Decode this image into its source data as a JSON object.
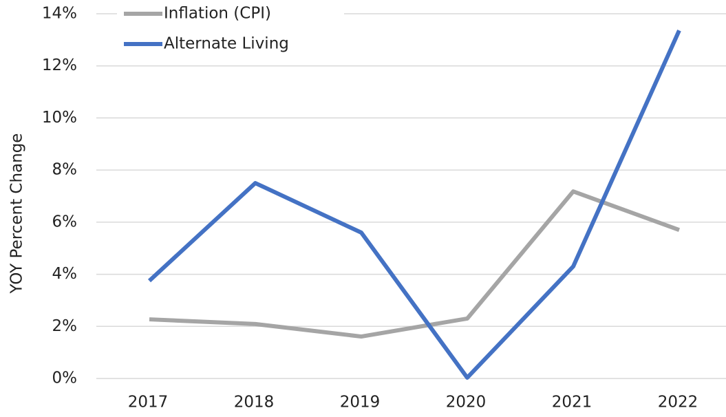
{
  "chart_data": {
    "type": "line",
    "y_label": "YOY Percent Change",
    "categories": [
      "2017",
      "2018",
      "2019",
      "2020",
      "2021",
      "2022"
    ],
    "series": [
      {
        "name": "Inflation (CPI)",
        "color": "#a5a5a5",
        "values": [
          2.27,
          2.09,
          1.61,
          2.3,
          7.18,
          5.7
        ]
      },
      {
        "name": "Alternate Living",
        "color": "#4472c4",
        "values": [
          3.75,
          7.5,
          5.6,
          0.03,
          4.3,
          13.36
        ]
      }
    ],
    "ylim": [
      0,
      14
    ],
    "yticks": [
      {
        "value": 0,
        "label": "0%"
      },
      {
        "value": 2,
        "label": "2%"
      },
      {
        "value": 4,
        "label": "4%"
      },
      {
        "value": 6,
        "label": "6%"
      },
      {
        "value": 8,
        "label": "8%"
      },
      {
        "value": 10,
        "label": "10%"
      },
      {
        "value": 12,
        "label": "12%"
      },
      {
        "value": 14,
        "label": "14%"
      }
    ],
    "grid": true,
    "legend": "top-left"
  }
}
